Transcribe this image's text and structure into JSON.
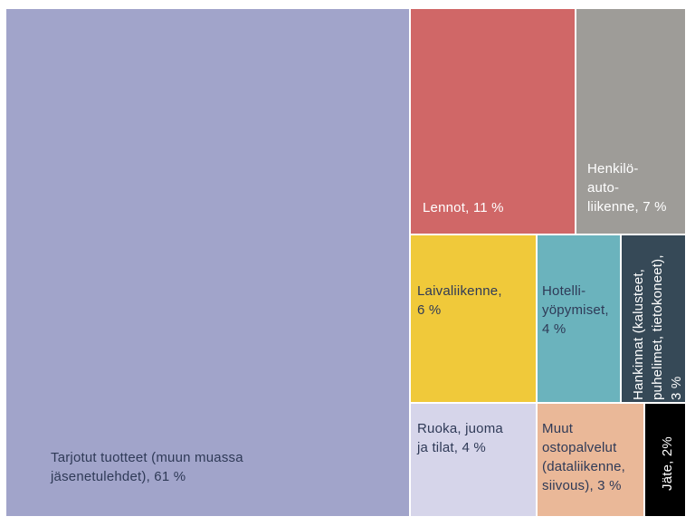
{
  "chart_data": {
    "type": "treemap",
    "title": "",
    "unit": "%",
    "items": [
      {
        "id": "tarjotut",
        "lines": [
          "Tarjotut tuotteet (muun muassa",
          "jäsenetulehdet), 61 %"
        ],
        "value": 61,
        "color": "#a1a4ca",
        "text_color": "#2f3a57"
      },
      {
        "id": "lennot",
        "lines": [
          "Lennot, 11 %"
        ],
        "value": 11,
        "color": "#d06767",
        "text_color": "#ffffff"
      },
      {
        "id": "henkiloautoliikenne",
        "lines": [
          "Henkilö-",
          "auto-",
          "liikenne, 7 %"
        ],
        "value": 7,
        "color": "#9e9c98",
        "text_color": "#ffffff"
      },
      {
        "id": "laivaliikenne",
        "lines": [
          "Laivaliikenne,",
          "6 %"
        ],
        "value": 6,
        "color": "#f0c93a",
        "text_color": "#2f3a57"
      },
      {
        "id": "hotelliyopymiset",
        "lines": [
          "Hotelli-",
          "yöpymiset,",
          "4 %"
        ],
        "value": 4,
        "color": "#6bb3bd",
        "text_color": "#2f3a57"
      },
      {
        "id": "hankinnat",
        "lines": [
          "Hankinnat (kalusteet,",
          "puhelimet, tietokoneet),",
          "3 %"
        ],
        "value": 3,
        "color": "#364957",
        "text_color": "#ffffff",
        "vertical": true
      },
      {
        "id": "ruoka",
        "lines": [
          "Ruoka, juoma",
          "ja tilat, 4 %"
        ],
        "value": 4,
        "color": "#d6d5ea",
        "text_color": "#2f3a57"
      },
      {
        "id": "muut",
        "lines": [
          "Muut",
          "ostopalvelut",
          "(dataliikenne,",
          "siivous), 3 %"
        ],
        "value": 3,
        "color": "#eab898",
        "text_color": "#2f3a57"
      },
      {
        "id": "jate",
        "lines": [
          "Jäte, 2%"
        ],
        "value": 2,
        "color": "#000000",
        "text_color": "#ffffff",
        "vertical": true
      }
    ]
  }
}
